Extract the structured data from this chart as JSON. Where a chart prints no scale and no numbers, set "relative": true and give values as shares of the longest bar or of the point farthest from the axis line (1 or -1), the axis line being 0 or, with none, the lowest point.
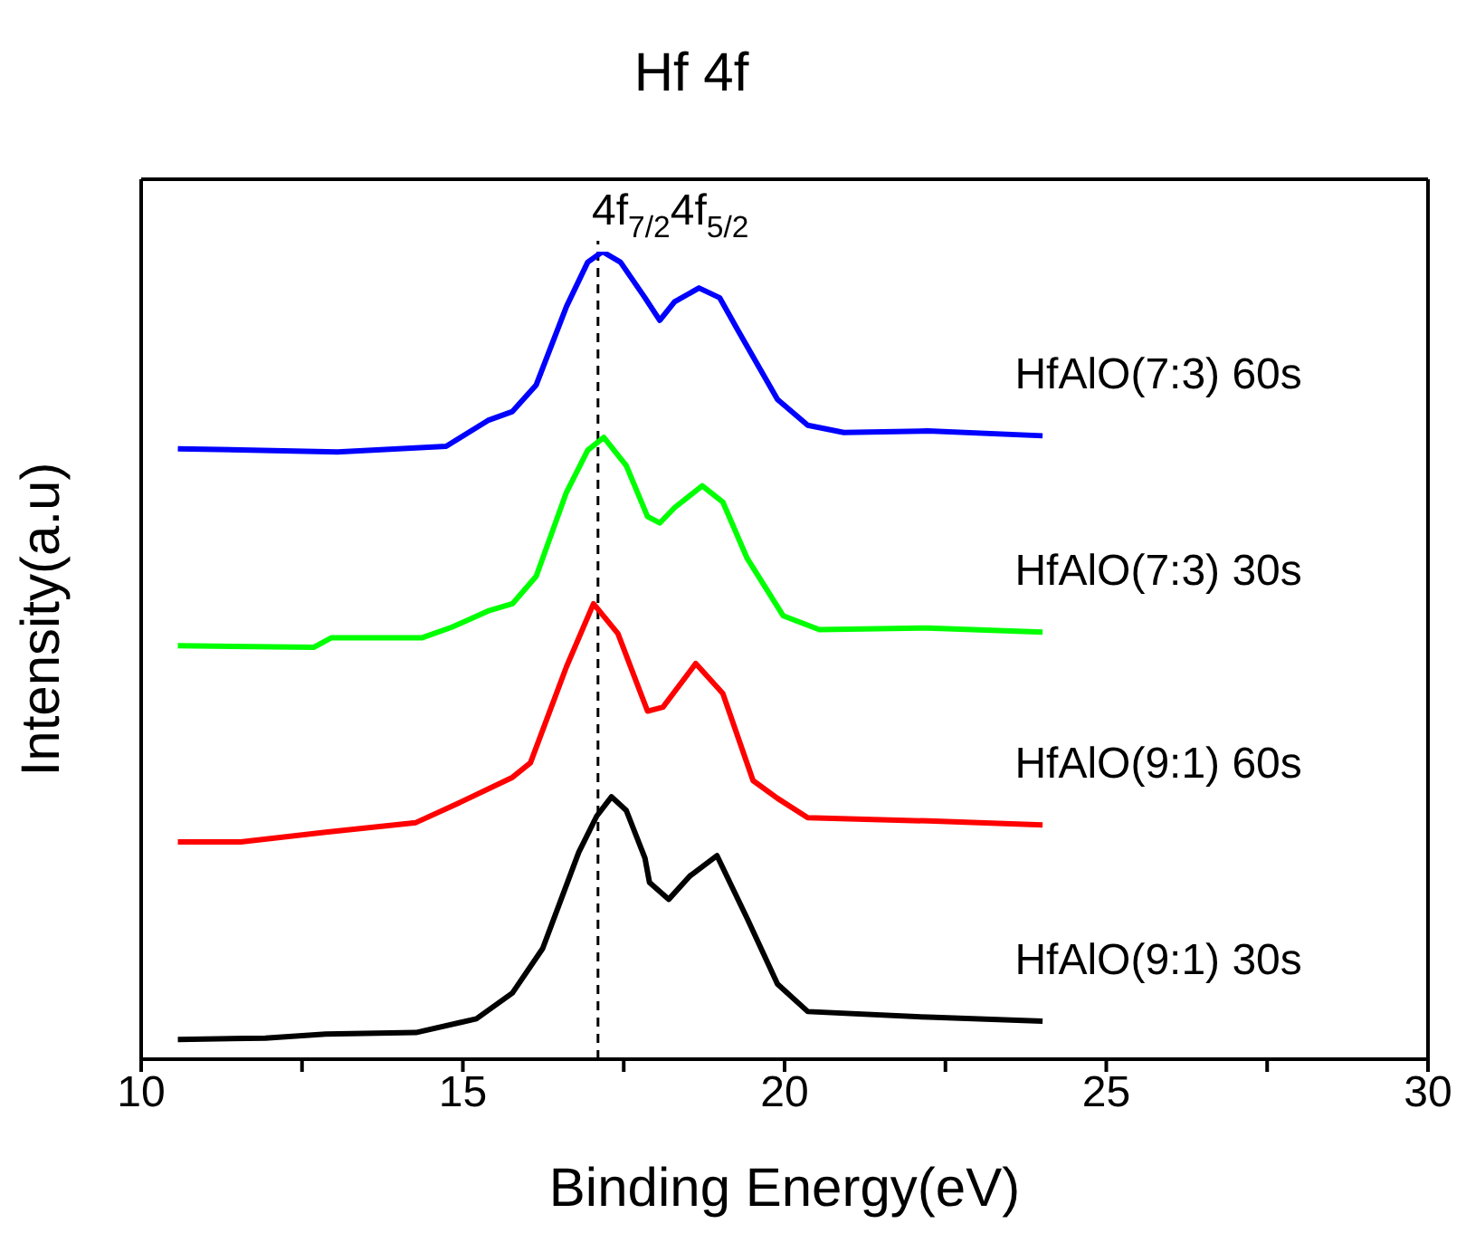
{
  "chart_data": {
    "type": "line",
    "title": "Hf 4f",
    "xlabel": "Binding Energy(eV)",
    "ylabel": "Intensity(a.u)",
    "relative": true,
    "marker": "none",
    "line_style": "solid",
    "xlim": [
      10,
      30
    ],
    "xticks": [
      10,
      {
        "value": 12.5,
        "label": null
      },
      15,
      {
        "value": 17.5,
        "label": null
      },
      20,
      {
        "value": 22.5,
        "label": null
      },
      25,
      {
        "value": 27.5,
        "label": null
      },
      30
    ],
    "ref_lines": [
      {
        "axis": "x",
        "value": 17.1,
        "label": "4f$_{7/2}$4f$_{5/2}$",
        "color": "#000000",
        "line_style": "dashed"
      }
    ],
    "series": [
      {
        "name": "HfAlO(7:3) 60s",
        "color": "#0000ff",
        "x": [
          10.57,
          13.05,
          14.74,
          15.39,
          15.77,
          16.14,
          16.61,
          16.94,
          17.17,
          17.45,
          17.83,
          18.06,
          18.29,
          18.67,
          18.99,
          19.28,
          19.89,
          20.36,
          20.92,
          22.23,
          24.01
        ],
        "values": [
          0.756,
          0.752,
          0.759,
          0.791,
          0.802,
          0.835,
          0.932,
          0.987,
          1.0,
          0.987,
          0.943,
          0.915,
          0.938,
          0.955,
          0.943,
          0.902,
          0.817,
          0.785,
          0.776,
          0.778,
          0.772
        ]
      },
      {
        "name": "HfAlO(7:3) 30s",
        "color": "#00ff00",
        "x": [
          10.57,
          12.68,
          12.96,
          14.37,
          14.83,
          15.39,
          15.77,
          16.14,
          16.61,
          16.94,
          17.19,
          17.54,
          17.87,
          18.06,
          18.29,
          18.72,
          19.04,
          19.42,
          19.98,
          20.54,
          22.23,
          24.01
        ],
        "values": [
          0.512,
          0.51,
          0.522,
          0.522,
          0.535,
          0.555,
          0.564,
          0.598,
          0.702,
          0.754,
          0.77,
          0.735,
          0.672,
          0.664,
          0.683,
          0.71,
          0.69,
          0.62,
          0.549,
          0.532,
          0.534,
          0.529
        ]
      },
      {
        "name": "HfAlO(9:1) 60s",
        "color": "#ff0000",
        "x": [
          10.57,
          11.55,
          12.87,
          14.27,
          14.93,
          15.77,
          16.05,
          16.61,
          17.03,
          17.41,
          17.87,
          18.11,
          18.62,
          19.04,
          19.51,
          19.89,
          20.36,
          22.23,
          24.01
        ],
        "values": [
          0.269,
          0.269,
          0.281,
          0.293,
          0.317,
          0.349,
          0.367,
          0.486,
          0.564,
          0.527,
          0.431,
          0.436,
          0.49,
          0.453,
          0.345,
          0.323,
          0.299,
          0.295,
          0.29
        ]
      },
      {
        "name": "HfAlO(9:1) 30s",
        "color": "#000000",
        "x": [
          10.57,
          11.93,
          12.87,
          14.27,
          15.21,
          15.77,
          16.24,
          16.8,
          17.08,
          17.31,
          17.54,
          17.83,
          17.9,
          18.2,
          18.53,
          18.95,
          19.42,
          19.89,
          20.36,
          22.23,
          24.01
        ],
        "values": [
          0.0245,
          0.026,
          0.031,
          0.033,
          0.05,
          0.082,
          0.137,
          0.256,
          0.301,
          0.325,
          0.308,
          0.249,
          0.219,
          0.198,
          0.227,
          0.252,
          0.174,
          0.093,
          0.059,
          0.052,
          0.047
        ]
      }
    ]
  }
}
